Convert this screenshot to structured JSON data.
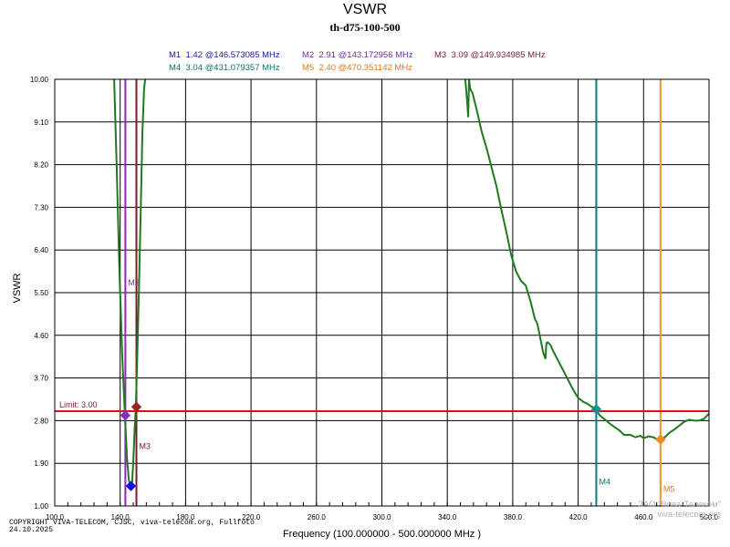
{
  "page": {
    "title": "VSWR",
    "subtitle": "th-d75-100-500",
    "copyright_line1": "COPYRIGHT VIVA-TELECOM, CJSC, viva-telecom.org, Fullfoto",
    "copyright_line2": "24.10.2025",
    "watermark_line1": "ЗАО \"Вива-Телеком\"",
    "watermark_line2": "viva-telecom.org"
  },
  "markers": [
    {
      "id": "M1",
      "value": "1.42",
      "freq": "146.573085 MHz",
      "freq_mhz": 146.573085,
      "vswr": 1.42,
      "color": "#1a1aa0",
      "line_color": "#2020c0",
      "dot_color": "#1010e0",
      "line": false,
      "label_on_chart": false
    },
    {
      "id": "M2",
      "value": "2.91",
      "freq": "143.172956 MHz",
      "freq_mhz": 143.172956,
      "vswr": 2.91,
      "color": "#7a2a9a",
      "line_color": "#8b2ab8",
      "dot_color": "#8a2cc0",
      "line": true,
      "label_on_chart": true,
      "chart_label_vswr": 5.65,
      "chart_label_side": "right"
    },
    {
      "id": "M3",
      "value": "3.09",
      "freq": "149.934985 MHz",
      "freq_mhz": 149.934985,
      "vswr": 3.09,
      "color": "#7a1c2c",
      "line_color": "#7a1c2c",
      "dot_color": "#9a2424",
      "line": true,
      "label_on_chart": true,
      "chart_label_vswr": 2.2,
      "chart_label_side": "right"
    },
    {
      "id": "M4",
      "value": "3.04",
      "freq": "431.079357 MHz",
      "freq_mhz": 431.079357,
      "vswr": 3.04,
      "color": "#0e7070",
      "line_color": "#0e7a7a",
      "dot_color": "#14908c",
      "line": true,
      "label_on_chart": true,
      "chart_label_vswr": 1.45,
      "chart_label_side": "right"
    },
    {
      "id": "M5",
      "value": "2.40",
      "freq": "470.351142 MHz",
      "freq_mhz": 470.351142,
      "vswr": 2.4,
      "color": "#e07810",
      "line_color": "#f0922a",
      "dot_color": "#f08a1c",
      "line": true,
      "label_on_chart": true,
      "chart_label_vswr": 1.3,
      "chart_label_side": "right"
    }
  ],
  "chart_data": {
    "type": "line",
    "title": "VSWR",
    "subtitle": "th-d75-100-500",
    "xlabel": "Frequency (100.000000 - 500.000000 MHz )",
    "ylabel": "VSWR",
    "xlim": [
      100,
      500
    ],
    "ylim": [
      1.0,
      10.0
    ],
    "x_ticks": [
      100,
      140,
      180,
      220,
      260,
      300,
      340,
      380,
      420,
      460,
      500
    ],
    "x_tick_labels": [
      "100.0",
      "140.0",
      "180.0",
      "220.0",
      "260.0",
      "300.0",
      "340.0",
      "380.0",
      "420.0",
      "460.0",
      "500.0"
    ],
    "y_ticks": [
      1.0,
      1.9,
      2.8,
      3.7,
      4.6,
      5.5,
      6.4,
      7.3,
      8.2,
      9.1,
      10.0
    ],
    "y_tick_labels": [
      "1.00",
      "1.90",
      "2.80",
      "3.70",
      "4.60",
      "5.50",
      "6.40",
      "7.30",
      "8.20",
      "9.10",
      "10.00"
    ],
    "limit": {
      "value": 3.0,
      "label": "Limit: 3.00",
      "color": "#e01010"
    },
    "colors": {
      "grid": "#000000",
      "trace": "#1e7a1e",
      "axis_text": "#000000"
    },
    "series": [
      {
        "name": "VSWR",
        "x": [
          136.3,
          138.0,
          139.5,
          141.2,
          142.8,
          144.2,
          145.3,
          146.0,
          146.6,
          147.3,
          148.0,
          148.8,
          149.6,
          150.5,
          151.5,
          152.6,
          153.6,
          154.6,
          155.3
        ],
        "y": [
          10.0,
          8.0,
          6.0,
          4.2,
          3.0,
          2.0,
          1.55,
          1.44,
          1.42,
          1.5,
          1.9,
          2.6,
          3.1,
          4.2,
          5.6,
          7.3,
          8.9,
          9.8,
          10.0
        ]
      },
      {
        "name": "VSWR",
        "x": [
          351.0,
          352.0,
          352.8,
          353.3,
          354.0,
          355.5,
          358.0,
          361.0,
          364.0,
          367.0,
          370.0,
          373.0,
          376.0,
          379.0,
          382.0,
          385.0,
          388.0,
          391.0,
          393.5,
          395.0,
          396.5,
          398.5,
          400.0,
          400.5,
          401.0,
          401.5,
          403.0,
          405.0,
          408.0,
          411.0,
          414.0,
          417.0,
          420.0,
          423.0,
          426.0,
          428.0,
          430.0,
          431.0,
          433.0,
          436.0,
          440.0,
          445.0,
          448.0,
          452.0,
          455.0,
          458.0,
          460.0,
          463.0,
          466.0,
          468.0,
          470.4,
          473.0,
          476.0,
          479.0,
          482.0,
          485.0,
          488.0,
          491.0,
          494.0,
          497.0,
          500.0
        ],
        "y": [
          10.0,
          9.6,
          9.2,
          10.0,
          9.8,
          9.7,
          9.35,
          8.9,
          8.55,
          8.15,
          7.75,
          7.25,
          6.8,
          6.3,
          5.95,
          5.75,
          5.65,
          5.3,
          4.95,
          4.85,
          4.6,
          4.25,
          4.1,
          4.4,
          4.45,
          4.45,
          4.4,
          4.25,
          4.05,
          3.85,
          3.65,
          3.45,
          3.28,
          3.2,
          3.15,
          3.1,
          3.07,
          3.04,
          2.92,
          2.83,
          2.72,
          2.6,
          2.5,
          2.5,
          2.45,
          2.48,
          2.43,
          2.47,
          2.45,
          2.41,
          2.4,
          2.45,
          2.55,
          2.62,
          2.7,
          2.78,
          2.82,
          2.8,
          2.8,
          2.84,
          2.95
        ]
      }
    ]
  }
}
